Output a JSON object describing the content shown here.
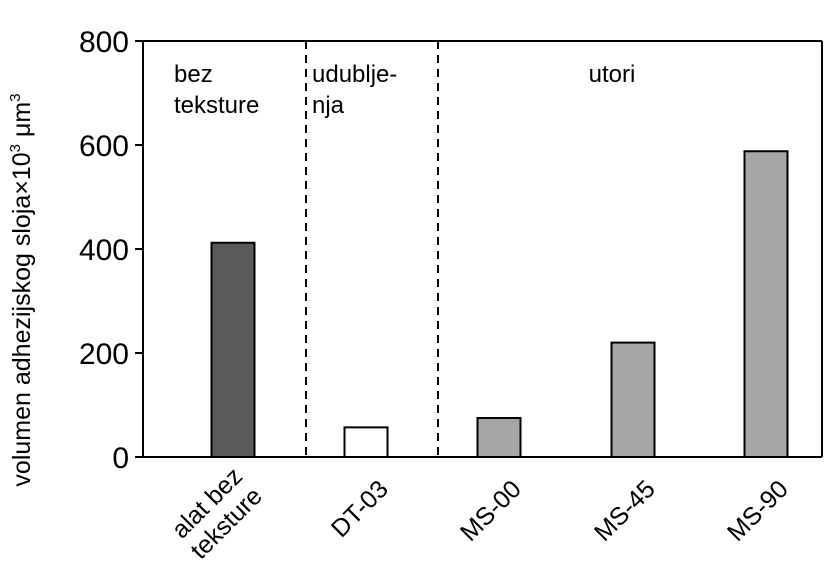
{
  "chart_data": {
    "type": "bar",
    "categories": [
      [
        "alat bez",
        "teksture"
      ],
      [
        "DT-03"
      ],
      [
        "MS-00"
      ],
      [
        "MS-45"
      ],
      [
        "MS-90"
      ]
    ],
    "values": [
      412,
      57,
      75,
      220,
      588
    ],
    "bar_colors": [
      "#595959",
      "#ffffff",
      "#a6a6a6",
      "#a6a6a6",
      "#a6a6a6"
    ],
    "ylim": [
      0,
      800
    ],
    "yticks": [
      "0",
      "200",
      "400",
      "600",
      "800"
    ],
    "ylabel": {
      "text": "volumen adhezijskog sloja×10",
      "sup": "3",
      "unit": " μm",
      "unit_sup": "3"
    },
    "xlabel": "",
    "title": "",
    "grid": false,
    "regions": [
      {
        "lines": [
          "bez",
          "teksture"
        ]
      },
      {
        "lines": [
          "udublje-",
          "nja"
        ]
      },
      {
        "lines": [
          "utori"
        ]
      }
    ]
  }
}
